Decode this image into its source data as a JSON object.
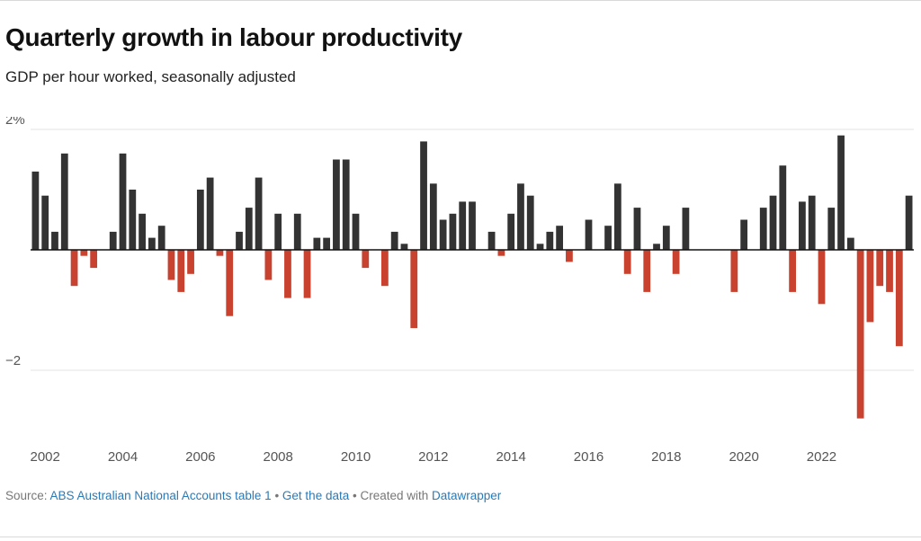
{
  "title": "Quarterly growth in labour productivity",
  "subtitle": "GDP per hour worked, seasonally adjusted",
  "footer": {
    "source_prefix": "Source: ",
    "source_link": "ABS Australian National Accounts table 1",
    "separator": " • ",
    "get_data": "Get the data",
    "created_with": "Created with ",
    "datawrapper": "Datawrapper"
  },
  "colors": {
    "positive": "#333333",
    "negative": "#c9412f",
    "grid": "#e3e3e3",
    "axis": "#111111",
    "tick_text": "#555555"
  },
  "chart_data": {
    "type": "bar",
    "title": "Quarterly growth in labour productivity",
    "subtitle": "GDP per hour worked, seasonally adjusted",
    "xlabel": "",
    "ylabel": "",
    "ylim": [
      -3.2,
      2.0
    ],
    "y_ticks": [
      2,
      0,
      -2
    ],
    "y_tick_labels": [
      "2%",
      "",
      "−2"
    ],
    "x_tick_labels": [
      "2002",
      "2004",
      "2006",
      "2008",
      "2010",
      "2012",
      "2014",
      "2016",
      "2018",
      "2020",
      "2022"
    ],
    "grid": true,
    "legend": "none",
    "start": "2001-Q4",
    "values": [
      1.3,
      0.9,
      0.3,
      1.6,
      -0.6,
      -0.1,
      -0.3,
      0.0,
      0.3,
      1.6,
      1.0,
      0.6,
      0.2,
      0.4,
      -0.5,
      -0.7,
      -0.4,
      1.0,
      1.2,
      -0.1,
      -1.1,
      0.3,
      0.7,
      1.2,
      -0.5,
      0.6,
      -0.8,
      0.6,
      -0.8,
      0.2,
      0.2,
      1.5,
      1.5,
      0.6,
      -0.3,
      0.0,
      -0.6,
      0.3,
      0.1,
      -1.3,
      1.8,
      1.1,
      0.5,
      0.6,
      0.8,
      0.8,
      0.0,
      0.3,
      -0.1,
      0.6,
      1.1,
      0.9,
      0.1,
      0.3,
      0.4,
      -0.2,
      0.0,
      0.5,
      0.0,
      0.4,
      1.1,
      -0.4,
      0.7,
      -0.7,
      0.1,
      0.4,
      -0.4,
      0.7,
      0.0,
      0.0,
      0.0,
      0.0,
      -0.7,
      0.5,
      0.0,
      0.7,
      0.9,
      1.4,
      -0.7,
      0.8,
      0.9,
      -0.9,
      0.7,
      1.9,
      0.2,
      -2.8,
      -1.2,
      -0.6,
      -0.7,
      -1.6,
      0.9
    ]
  }
}
